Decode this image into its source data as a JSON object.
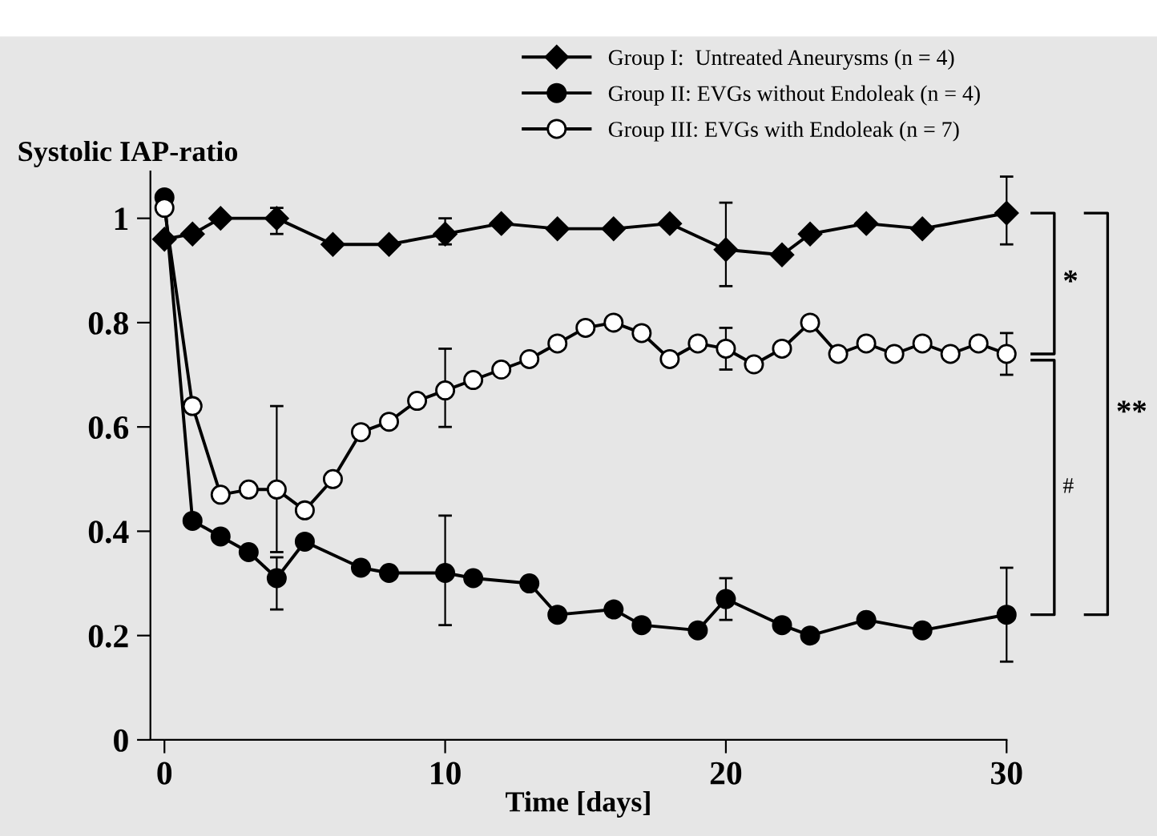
{
  "chart_data": {
    "type": "line",
    "ylabel": "Systolic IAP-ratio",
    "xlabel": "Time [days]",
    "xlim": [
      -0.5,
      30
    ],
    "xticks": [
      0,
      10,
      20,
      30
    ],
    "ylim": [
      0,
      1.09
    ],
    "yticks": [
      0,
      0.2,
      0.4,
      0.6,
      0.8,
      1
    ],
    "grid": false,
    "legend": "top",
    "line_style": "solid",
    "annotations": [
      "*",
      "#",
      "**"
    ],
    "series": [
      {
        "name": "Group I:  Untreated Aneurysms (n = 4)",
        "color": "#000000",
        "marker": "diamond",
        "x": [
          0,
          1,
          2,
          4,
          6,
          8,
          10,
          12,
          14,
          16,
          18,
          20,
          22,
          23,
          25,
          27,
          30
        ],
        "values": [
          0.96,
          0.97,
          1.0,
          1.0,
          0.95,
          0.95,
          0.97,
          0.99,
          0.98,
          0.98,
          0.99,
          0.94,
          0.93,
          0.97,
          0.99,
          0.98,
          1.01
        ],
        "errors": [
          null,
          null,
          null,
          [
            0.97,
            1.02
          ],
          null,
          null,
          [
            0.95,
            1.0
          ],
          null,
          null,
          null,
          null,
          [
            0.87,
            1.03
          ],
          null,
          null,
          null,
          null,
          [
            0.95,
            1.08
          ]
        ]
      },
      {
        "name": "Group II: EVGs without Endoleak (n = 4)",
        "color": "#000000",
        "marker": "circle",
        "x": [
          0,
          1,
          2,
          3,
          4,
          5,
          7,
          8,
          10,
          11,
          13,
          14,
          16,
          17,
          19,
          20,
          22,
          23,
          25,
          27,
          30
        ],
        "values": [
          1.04,
          0.42,
          0.39,
          0.36,
          0.31,
          0.38,
          0.33,
          0.32,
          0.32,
          0.31,
          0.3,
          0.24,
          0.25,
          0.22,
          0.21,
          0.27,
          0.22,
          0.2,
          0.23,
          0.21,
          0.24
        ],
        "errors": [
          null,
          null,
          null,
          null,
          [
            0.25,
            0.35
          ],
          null,
          null,
          null,
          [
            0.22,
            0.43
          ],
          null,
          null,
          null,
          null,
          null,
          null,
          [
            0.23,
            0.31
          ],
          null,
          null,
          null,
          null,
          [
            0.15,
            0.33
          ]
        ]
      },
      {
        "name": "Group III: EVGs with Endoleak (n = 7)",
        "color": "#ffffff",
        "marker": "circle",
        "x": [
          0,
          1,
          2,
          3,
          4,
          5,
          6,
          7,
          8,
          9,
          10,
          11,
          12,
          13,
          14,
          15,
          16,
          17,
          18,
          19,
          20,
          21,
          22,
          23,
          24,
          25,
          26,
          27,
          28,
          29,
          30
        ],
        "values": [
          1.02,
          0.64,
          0.47,
          0.48,
          0.48,
          0.44,
          0.5,
          0.59,
          0.61,
          0.65,
          0.67,
          0.69,
          0.71,
          0.73,
          0.76,
          0.79,
          0.8,
          0.78,
          0.73,
          0.76,
          0.75,
          0.72,
          0.75,
          0.8,
          0.74,
          0.76,
          0.74,
          0.76,
          0.74,
          0.76,
          0.74
        ],
        "errors": [
          null,
          null,
          null,
          null,
          [
            0.36,
            0.64
          ],
          null,
          null,
          null,
          null,
          null,
          [
            0.6,
            0.75
          ],
          null,
          null,
          null,
          null,
          null,
          null,
          null,
          null,
          null,
          [
            0.71,
            0.79
          ],
          null,
          null,
          null,
          null,
          null,
          null,
          null,
          null,
          null,
          [
            0.7,
            0.78
          ]
        ]
      }
    ]
  }
}
